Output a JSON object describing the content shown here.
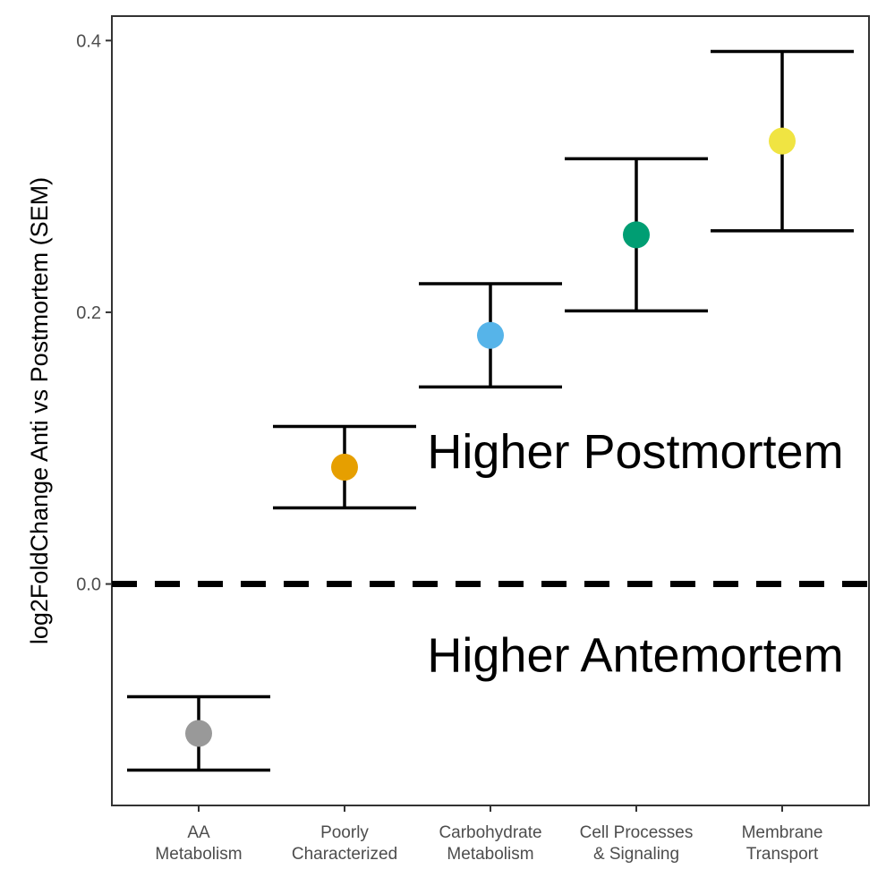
{
  "chart_data": {
    "type": "scatter",
    "categories": [
      "AA\nMetabolism",
      "Poorly\nCharacterized",
      "Carbohydrate\nMetabolism",
      "Cell Processes\n& Signaling",
      "Membrane\nTransport"
    ],
    "series": [
      {
        "values": [
          -0.11,
          0.086,
          0.183,
          0.257,
          0.326
        ],
        "error_low": [
          -0.137,
          0.056,
          0.145,
          0.201,
          0.26
        ],
        "error_high": [
          -0.083,
          0.116,
          0.221,
          0.313,
          0.392
        ],
        "colors": [
          "#999999",
          "#E69F00",
          "#56B4E9",
          "#009E73",
          "#F0E442"
        ]
      }
    ],
    "ylabel": "log2FoldChange Anti vs Postmortem (SEM)",
    "xlabel": "",
    "ylim": [
      -0.163,
      0.418
    ],
    "yticks": [
      0.0,
      0.2,
      0.4
    ],
    "ytick_labels": [
      "0.0",
      "0.2",
      "0.4"
    ],
    "reference_line": {
      "y": 0,
      "style": "dashed"
    },
    "annotations": [
      {
        "text": "Higher Postmortem",
        "y": 0.098
      },
      {
        "text": "Higher Antemortem",
        "y": -0.052
      }
    ],
    "grid": false,
    "legend": "none"
  }
}
